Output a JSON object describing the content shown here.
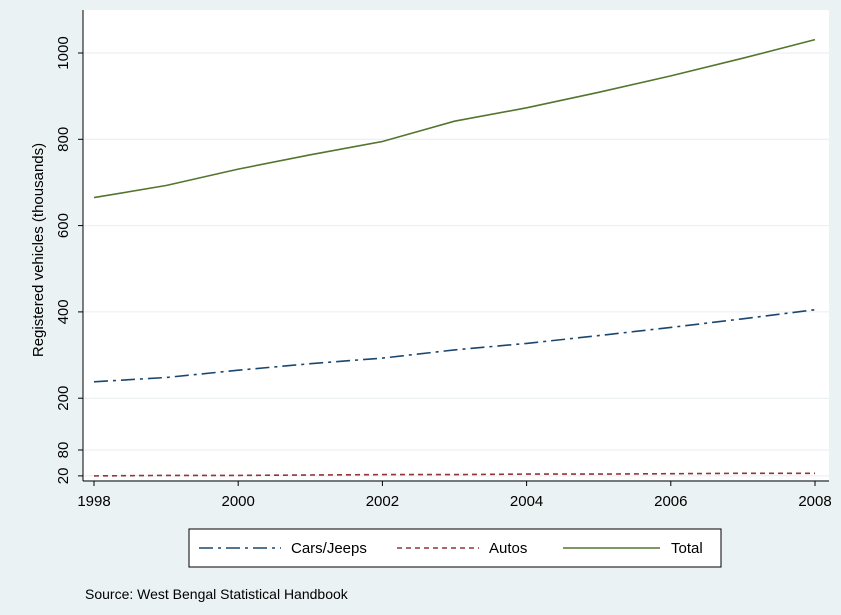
{
  "chart_data": {
    "type": "line",
    "x": [
      1998,
      1999,
      2000,
      2001,
      2002,
      2003,
      2004,
      2005,
      2006,
      2007,
      2008
    ],
    "series": [
      {
        "name": "Cars/Jeeps",
        "values": [
          238,
          248,
          265,
          280,
          293,
          312,
          327,
          345,
          364,
          384,
          405
        ],
        "color": "#1a476f",
        "dash": "dash-dot"
      },
      {
        "name": "Autos",
        "values": [
          20,
          21,
          21,
          22,
          23,
          23,
          24,
          24,
          25,
          26,
          26
        ],
        "color": "#90353b",
        "dash": "dashed"
      },
      {
        "name": "Total",
        "values": [
          665,
          693,
          731,
          764,
          795,
          842,
          873,
          909,
          947,
          988,
          1031
        ],
        "color": "#55752f",
        "dash": "solid"
      }
    ],
    "ylabel": "Registered vehicles (thousands)",
    "xlabel": "",
    "xlim": [
      1998,
      2008
    ],
    "ylim": [
      20,
      1050
    ],
    "xticks": [
      1998,
      2000,
      2002,
      2004,
      2006,
      2008
    ],
    "yticks": [
      20,
      80,
      200,
      400,
      600,
      800,
      1000
    ],
    "ytick_labels": [
      "20",
      "80",
      "200",
      "400",
      "600",
      "800",
      "1000"
    ],
    "grid": true,
    "legend_position": "bottom",
    "note": "Source: West Bengal Statistical Handbook"
  }
}
